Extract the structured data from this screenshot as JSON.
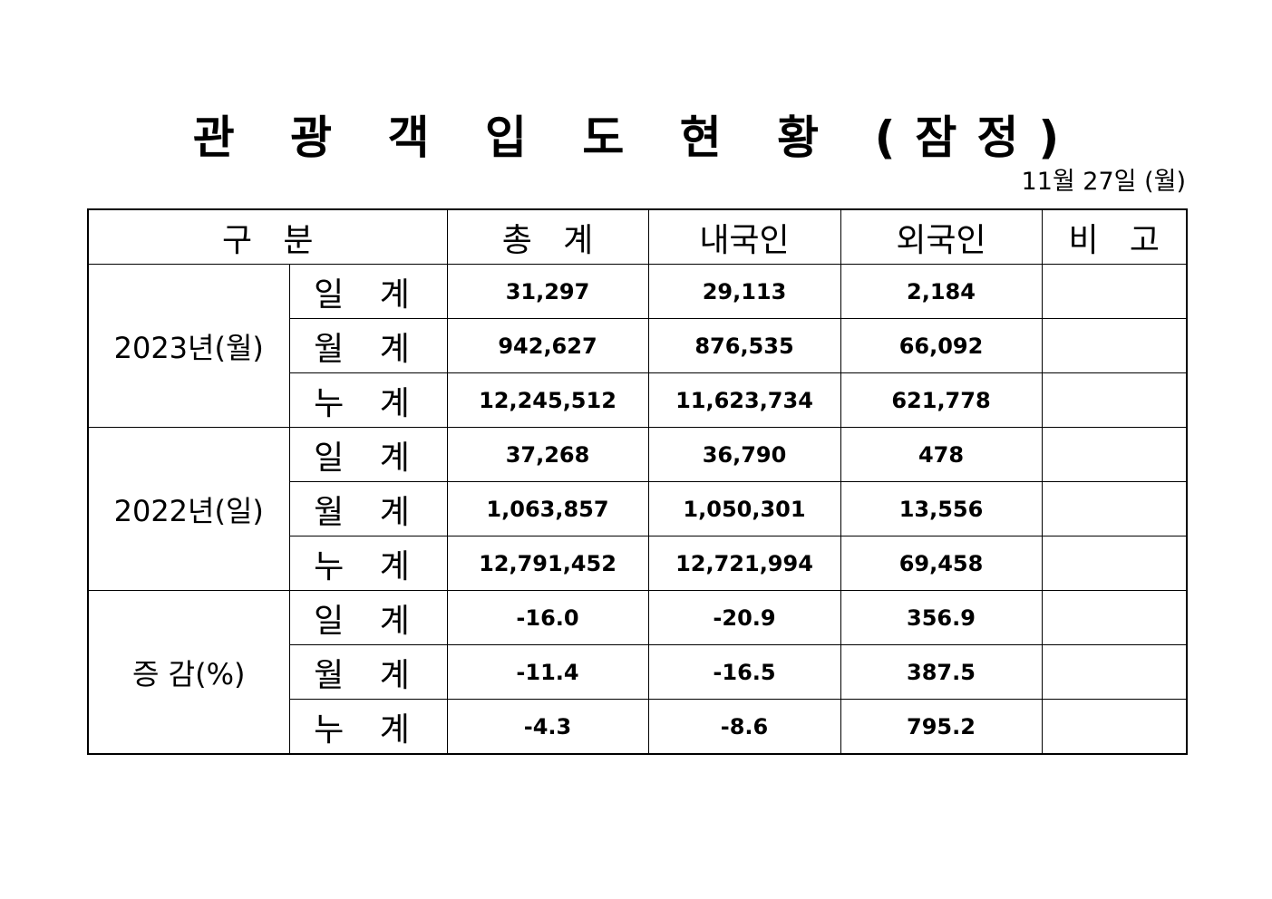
{
  "title": "관 광 객 입 도 현 황 (잠정)",
  "date": "11월 27일 (월)",
  "headers": {
    "category": "구   분",
    "total": "총   계",
    "domestic": "내국인",
    "foreign": "외국인",
    "remarks": "비   고"
  },
  "groups": [
    {
      "label": "2023년(월)",
      "rows": [
        {
          "sub": "일 계",
          "total": "31,297",
          "domestic": "29,113",
          "foreign": "2,184",
          "remarks": ""
        },
        {
          "sub": "월 계",
          "total": "942,627",
          "domestic": "876,535",
          "foreign": "66,092",
          "remarks": ""
        },
        {
          "sub": "누 계",
          "total": "12,245,512",
          "domestic": "11,623,734",
          "foreign": "621,778",
          "remarks": ""
        }
      ]
    },
    {
      "label": "2022년(일)",
      "rows": [
        {
          "sub": "일 계",
          "total": "37,268",
          "domestic": "36,790",
          "foreign": "478",
          "remarks": ""
        },
        {
          "sub": "월 계",
          "total": "1,063,857",
          "domestic": "1,050,301",
          "foreign": "13,556",
          "remarks": ""
        },
        {
          "sub": "누 계",
          "total": "12,791,452",
          "domestic": "12,721,994",
          "foreign": "69,458",
          "remarks": ""
        }
      ]
    },
    {
      "label": "증 감(%)",
      "rows": [
        {
          "sub": "일 계",
          "total": "-16.0",
          "domestic": "-20.9",
          "foreign": "356.9",
          "remarks": ""
        },
        {
          "sub": "월 계",
          "total": "-11.4",
          "domestic": "-16.5",
          "foreign": "387.5",
          "remarks": ""
        },
        {
          "sub": "누 계",
          "total": "-4.3",
          "domestic": "-8.6",
          "foreign": "795.2",
          "remarks": ""
        }
      ]
    }
  ]
}
